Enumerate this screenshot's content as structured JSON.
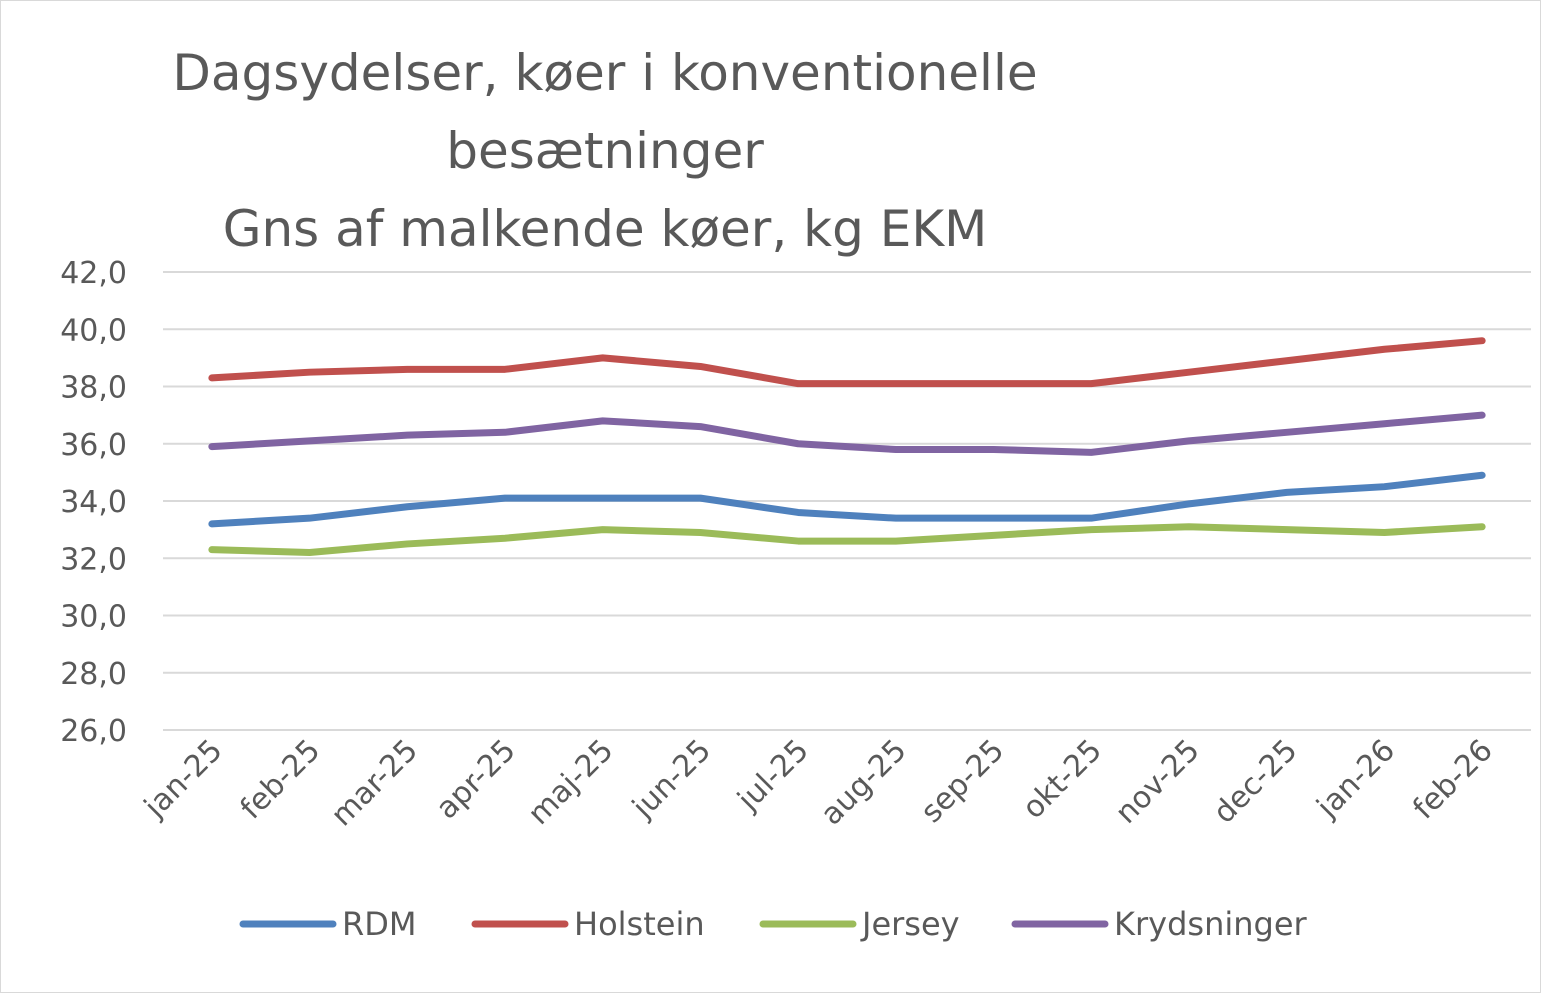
{
  "chart_data": {
    "type": "line",
    "title": [
      "Dagsydelser, køer i konventionelle",
      "besætninger",
      "Gns af malkende køer, kg EKM"
    ],
    "xlabel": "",
    "ylabel": "",
    "categories": [
      "jan-25",
      "feb-25",
      "mar-25",
      "apr-25",
      "maj-25",
      "jun-25",
      "jul-25",
      "aug-25",
      "sep-25",
      "okt-25",
      "nov-25",
      "dec-25",
      "jan-26",
      "feb-26"
    ],
    "ylim": [
      26,
      42
    ],
    "yticks": [
      "26,0",
      "28,0",
      "30,0",
      "32,0",
      "34,0",
      "36,0",
      "38,0",
      "40,0",
      "42,0"
    ],
    "grid": true,
    "legend_position": "bottom",
    "series": [
      {
        "name": "RDM",
        "color": "#4f81bd",
        "values": [
          33.2,
          33.4,
          33.8,
          34.1,
          34.1,
          34.1,
          33.6,
          33.4,
          33.4,
          33.4,
          33.9,
          34.3,
          34.5,
          34.9
        ]
      },
      {
        "name": "Holstein",
        "color": "#c0504d",
        "values": [
          38.3,
          38.5,
          38.6,
          38.6,
          39.0,
          38.7,
          38.1,
          38.1,
          38.1,
          38.1,
          38.5,
          38.9,
          39.3,
          39.6
        ]
      },
      {
        "name": "Jersey",
        "color": "#9bbb59",
        "values": [
          32.3,
          32.2,
          32.5,
          32.7,
          33.0,
          32.9,
          32.6,
          32.6,
          32.8,
          33.0,
          33.1,
          33.0,
          32.9,
          33.1
        ]
      },
      {
        "name": "Krydsninger",
        "color": "#8064a2",
        "values": [
          35.9,
          36.1,
          36.3,
          36.4,
          36.8,
          36.6,
          36.0,
          35.8,
          35.8,
          35.7,
          36.1,
          36.4,
          36.7,
          37.0
        ]
      }
    ]
  }
}
